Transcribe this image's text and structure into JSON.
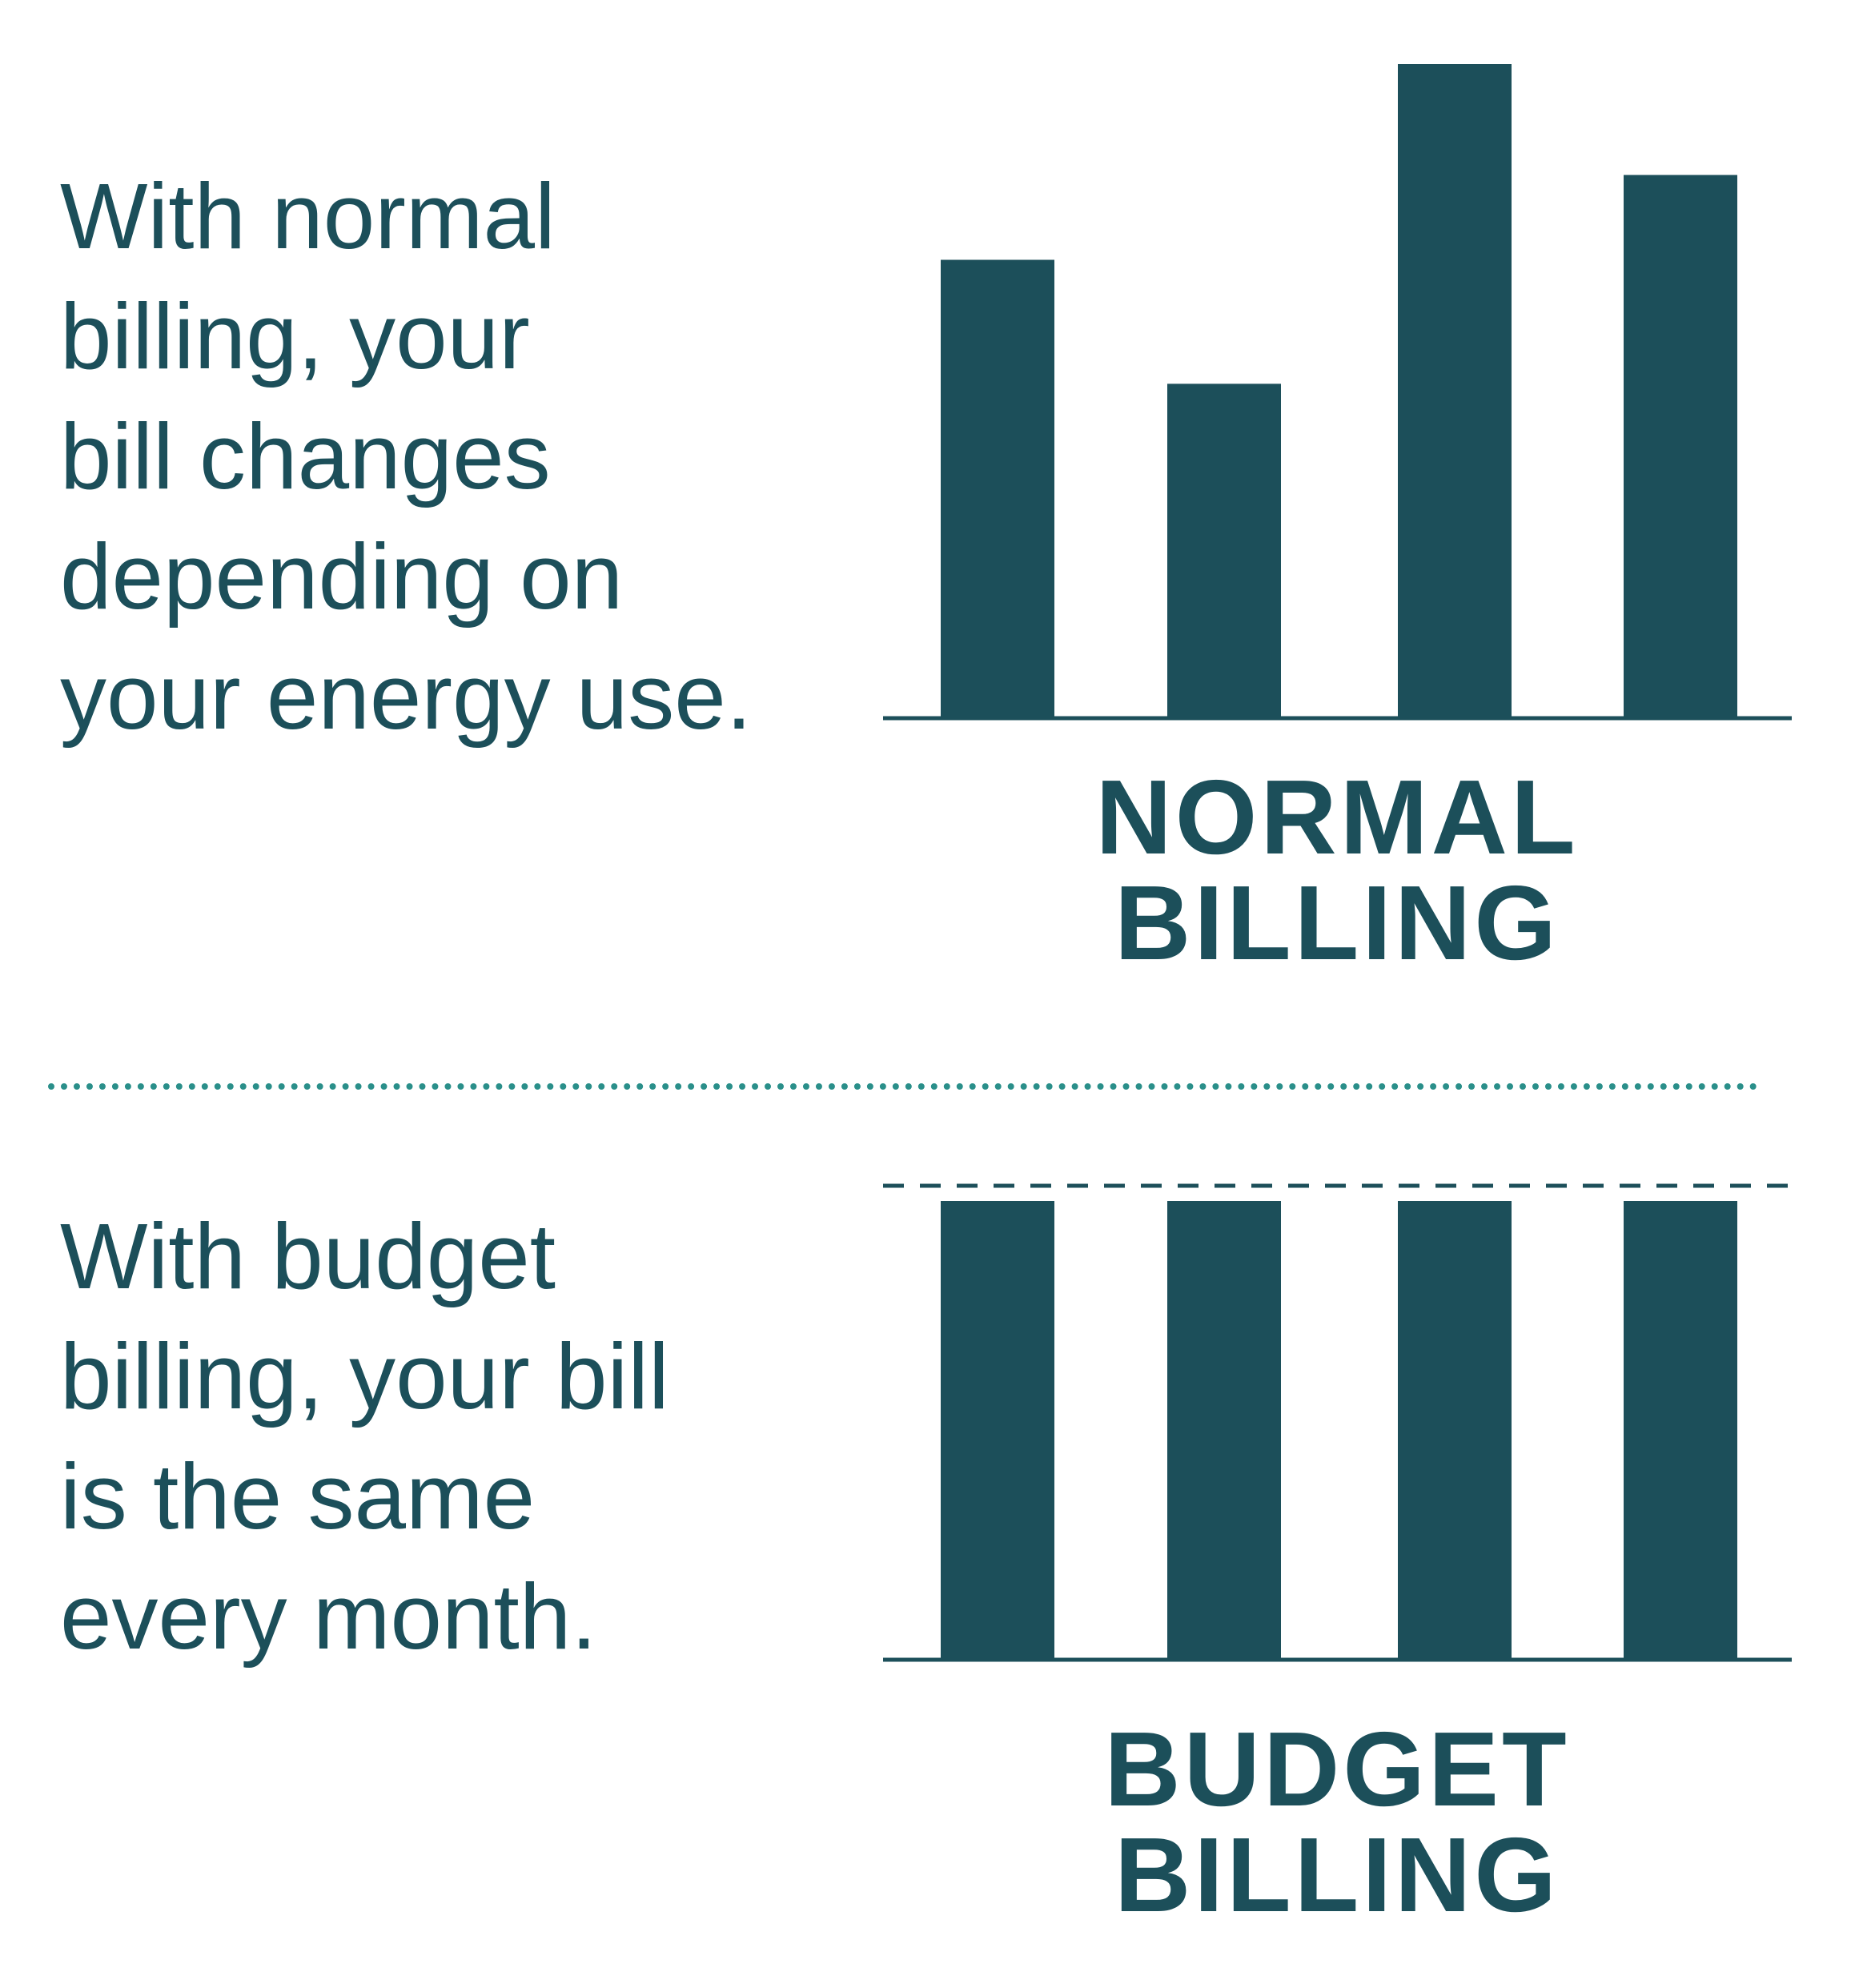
{
  "colors": {
    "bar": "#1c4f5a",
    "text": "#1c4f5a",
    "divider": "#2a8f8a"
  },
  "normal": {
    "lines": [
      "With normal",
      "billing, your",
      "bill changes",
      "depending on",
      "your energy use."
    ],
    "title_lines": [
      "NORMAL",
      "BILLING"
    ]
  },
  "budget": {
    "lines": [
      "With budget",
      "billing, your bill",
      "is the same",
      "every month."
    ],
    "title_lines": [
      "BUDGET",
      "BILLING"
    ]
  },
  "chart_data": [
    {
      "type": "bar",
      "title": "NORMAL BILLING",
      "values": [
        70,
        51,
        100,
        83
      ],
      "ylim": [
        0,
        100
      ],
      "grid": false
    },
    {
      "type": "bar",
      "title": "BUDGET BILLING",
      "values": [
        100,
        100,
        100,
        100
      ],
      "ylim": [
        0,
        100
      ],
      "reference_line": 100,
      "grid": false
    }
  ]
}
